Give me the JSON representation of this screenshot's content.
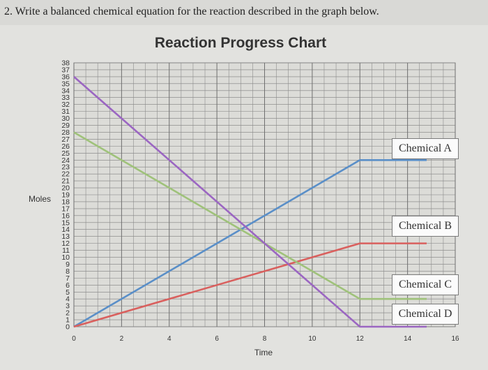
{
  "question": "2. Write a balanced chemical equation for the reaction described in the graph below.",
  "chart_data": {
    "type": "line",
    "title": "Reaction Progress Chart",
    "xlabel": "Time",
    "ylabel": "Moles",
    "xlim": [
      0,
      16
    ],
    "ylim": [
      0,
      38
    ],
    "x_ticks": [
      0,
      2,
      4,
      6,
      8,
      10,
      12,
      14,
      16
    ],
    "y_ticks": [
      0,
      1,
      2,
      3,
      4,
      5,
      6,
      7,
      8,
      9,
      10,
      11,
      12,
      13,
      14,
      15,
      16,
      17,
      18,
      19,
      20,
      21,
      22,
      23,
      24,
      25,
      26,
      27,
      28,
      29,
      30,
      31,
      32,
      33,
      34,
      35,
      36,
      37,
      38
    ],
    "grid": true,
    "series": [
      {
        "name": "Chemical A",
        "color": "#5a8fc8",
        "x": [
          0,
          12,
          14.8
        ],
        "y": [
          0,
          24,
          24
        ]
      },
      {
        "name": "Chemical B",
        "color": "#d9605e",
        "x": [
          0,
          12,
          14.8
        ],
        "y": [
          0,
          12,
          12
        ]
      },
      {
        "name": "Chemical C",
        "color": "#9fc27a",
        "x": [
          0,
          12,
          14.8
        ],
        "y": [
          28,
          4,
          4
        ]
      },
      {
        "name": "Chemical D",
        "color": "#9b66c2",
        "x": [
          0,
          12,
          14.8
        ],
        "y": [
          36,
          0,
          0
        ]
      }
    ]
  }
}
